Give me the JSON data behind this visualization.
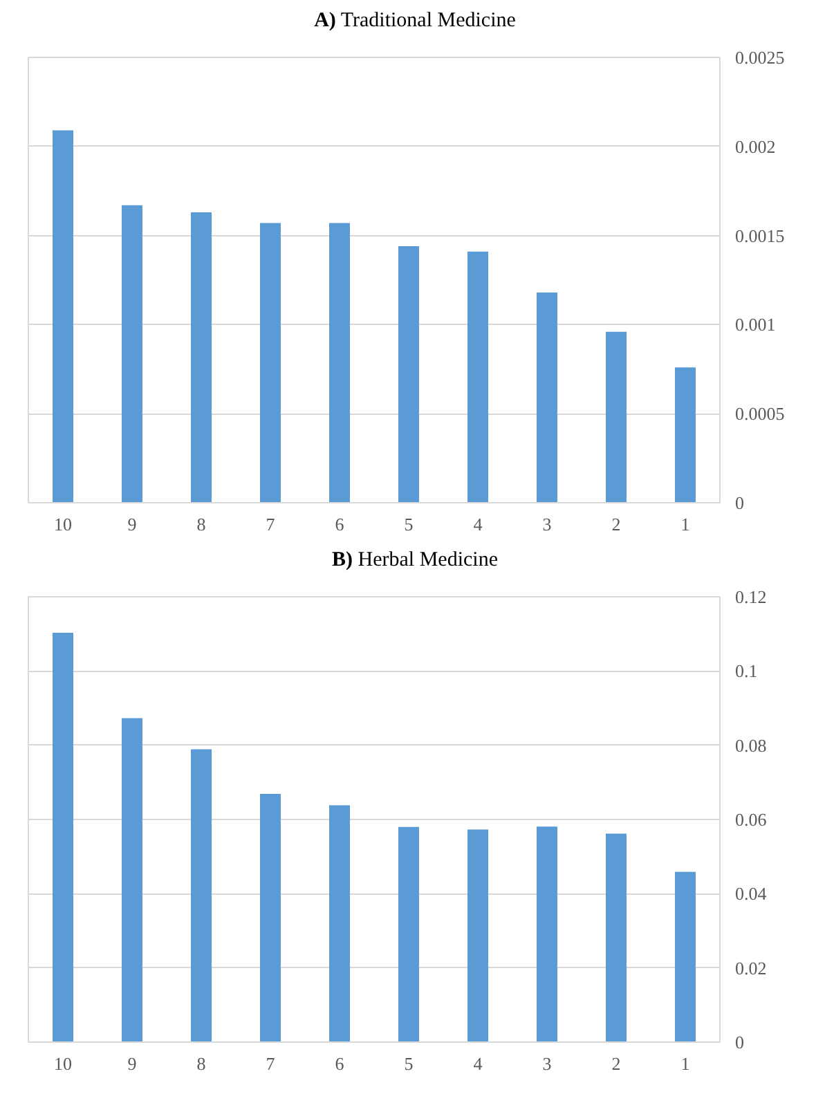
{
  "chart_data": [
    {
      "type": "bar",
      "title": "A) Traditional Medicine",
      "categories": [
        "10",
        "9",
        "8",
        "7",
        "6",
        "5",
        "4",
        "3",
        "2",
        "1"
      ],
      "values": [
        0.00209,
        0.00167,
        0.00163,
        0.00157,
        0.00157,
        0.00144,
        0.00141,
        0.00118,
        0.00096,
        0.00076
      ],
      "color": "#5b9bd5",
      "ylim": [
        0,
        0.0025
      ],
      "yticks": [
        0,
        0.0005,
        0.001,
        0.0015,
        0.002,
        0.0025
      ],
      "grid": "y"
    },
    {
      "type": "bar",
      "title": "B) Herbal Medicine",
      "categories": [
        "10",
        "9",
        "8",
        "7",
        "6",
        "5",
        "4",
        "3",
        "2",
        "1"
      ],
      "values": [
        0.1103,
        0.0873,
        0.0789,
        0.0669,
        0.0638,
        0.058,
        0.0573,
        0.0581,
        0.0562,
        0.0459
      ],
      "color": "#5b9bd5",
      "ylim": [
        0,
        0.12
      ],
      "yticks": [
        0,
        0.02,
        0.04,
        0.06,
        0.08,
        0.1,
        0.12
      ],
      "grid": "y"
    }
  ]
}
